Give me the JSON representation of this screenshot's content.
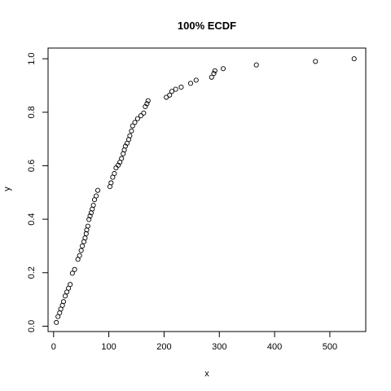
{
  "chart_data": {
    "type": "scatter",
    "title": "100% ECDF",
    "xlabel": "x",
    "ylabel": "y",
    "xlim": [
      -10,
      565
    ],
    "ylim": [
      -0.02,
      1.04
    ],
    "x_ticks": [
      0,
      100,
      200,
      300,
      400,
      500
    ],
    "y_ticks": [
      0.0,
      0.2,
      0.4,
      0.6,
      0.8,
      1.0
    ],
    "x_tick_labels": [
      "0",
      "100",
      "200",
      "300",
      "400",
      "500"
    ],
    "y_tick_labels": [
      "0.0",
      "0.2",
      "0.4",
      "0.6",
      "0.8",
      "1.0"
    ],
    "grid": false,
    "marker": "open-circle",
    "series": [
      {
        "points": [
          [
            5,
            0.014
          ],
          [
            8,
            0.036
          ],
          [
            11,
            0.05
          ],
          [
            13,
            0.064
          ],
          [
            16,
            0.078
          ],
          [
            18,
            0.092
          ],
          [
            21,
            0.113
          ],
          [
            24,
            0.128
          ],
          [
            27,
            0.142
          ],
          [
            30,
            0.156
          ],
          [
            34,
            0.198
          ],
          [
            38,
            0.212
          ],
          [
            44,
            0.25
          ],
          [
            47,
            0.264
          ],
          [
            50,
            0.283
          ],
          [
            52,
            0.3
          ],
          [
            55,
            0.316
          ],
          [
            57,
            0.33
          ],
          [
            59,
            0.346
          ],
          [
            60,
            0.36
          ],
          [
            62,
            0.374
          ],
          [
            64,
            0.399
          ],
          [
            66,
            0.412
          ],
          [
            68,
            0.424
          ],
          [
            70,
            0.438
          ],
          [
            72,
            0.452
          ],
          [
            74,
            0.473
          ],
          [
            77,
            0.487
          ],
          [
            80,
            0.508
          ],
          [
            102,
            0.522
          ],
          [
            104,
            0.536
          ],
          [
            107,
            0.557
          ],
          [
            110,
            0.571
          ],
          [
            113,
            0.592
          ],
          [
            117,
            0.602
          ],
          [
            120,
            0.613
          ],
          [
            123,
            0.627
          ],
          [
            126,
            0.645
          ],
          [
            128,
            0.659
          ],
          [
            130,
            0.673
          ],
          [
            133,
            0.684
          ],
          [
            136,
            0.698
          ],
          [
            138,
            0.712
          ],
          [
            141,
            0.73
          ],
          [
            143,
            0.749
          ],
          [
            147,
            0.762
          ],
          [
            152,
            0.776
          ],
          [
            158,
            0.787
          ],
          [
            163,
            0.797
          ],
          [
            166,
            0.821
          ],
          [
            169,
            0.832
          ],
          [
            171,
            0.843
          ],
          [
            204,
            0.856
          ],
          [
            210,
            0.864
          ],
          [
            214,
            0.878
          ],
          [
            221,
            0.886
          ],
          [
            231,
            0.894
          ],
          [
            248,
            0.908
          ],
          [
            258,
            0.92
          ],
          [
            286,
            0.931
          ],
          [
            290,
            0.945
          ],
          [
            292,
            0.955
          ],
          [
            307,
            0.963
          ],
          [
            367,
            0.977
          ],
          [
            474,
            0.99
          ],
          [
            544,
            1.0
          ]
        ]
      }
    ]
  }
}
